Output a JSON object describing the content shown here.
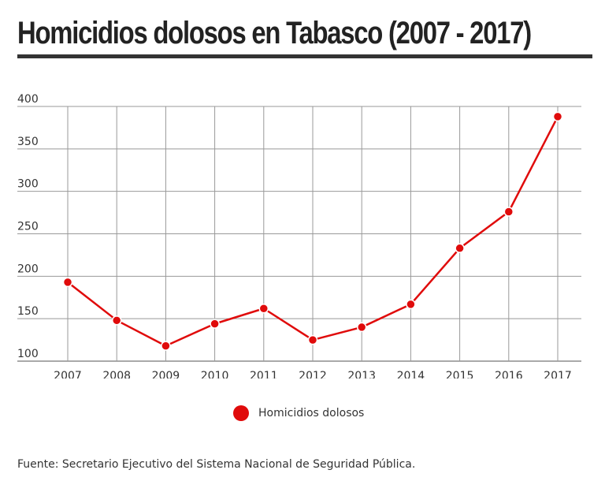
{
  "title": "Homicidios dolosos en Tabasco (2007 - 2017)",
  "source": "Fuente: Secretario Ejecutivo del Sistema Nacional de Seguridad Pública.",
  "colors": {
    "series": "#e00b0b",
    "grid": "#999999",
    "text": "#333333"
  },
  "chart_data": {
    "type": "line",
    "title": "Homicidios dolosos en Tabasco (2007 - 2017)",
    "xlabel": "",
    "ylabel": "",
    "categories": [
      "2007",
      "2008",
      "2009",
      "2010",
      "2011",
      "2012",
      "2013",
      "2014",
      "2015",
      "2016",
      "2017"
    ],
    "series": [
      {
        "name": "Homicidios dolosos",
        "values": [
          193,
          148,
          118,
          144,
          162,
          125,
          140,
          167,
          233,
          276,
          388
        ]
      }
    ],
    "ylim": [
      100,
      400
    ],
    "yticks": [
      "400",
      "350",
      "300",
      "250",
      "200",
      "150",
      "100"
    ],
    "grid": true,
    "legend_position": "bottom"
  }
}
